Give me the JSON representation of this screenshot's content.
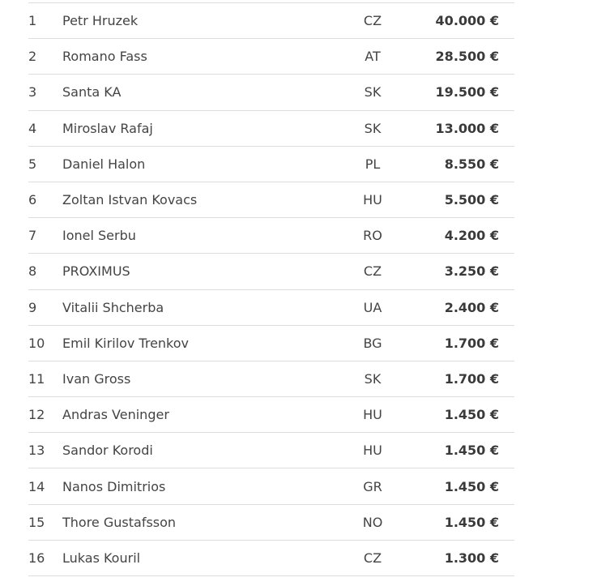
{
  "rows": [
    {
      "rank": "1",
      "name": "Petr Hruzek",
      "country": "CZ",
      "prize": "40.000 €"
    },
    {
      "rank": "2",
      "name": "Romano Fass",
      "country": "AT",
      "prize": "28.500 €"
    },
    {
      "rank": "3",
      "name": "Santa KA",
      "country": "SK",
      "prize": "19.500 €"
    },
    {
      "rank": "4",
      "name": "Miroslav Rafaj",
      "country": "SK",
      "prize": "13.000 €"
    },
    {
      "rank": "5",
      "name": "Daniel Halon",
      "country": "PL",
      "prize": "8.550 €"
    },
    {
      "rank": "6",
      "name": "Zoltan Istvan Kovacs",
      "country": "HU",
      "prize": "5.500 €"
    },
    {
      "rank": "7",
      "name": "Ionel Serbu",
      "country": "RO",
      "prize": "4.200 €"
    },
    {
      "rank": "8",
      "name": "PROXIMUS",
      "country": "CZ",
      "prize": "3.250 €"
    },
    {
      "rank": "9",
      "name": "Vitalii Shcherba",
      "country": "UA",
      "prize": "2.400 €"
    },
    {
      "rank": "10",
      "name": "Emil Kirilov Trenkov",
      "country": "BG",
      "prize": "1.700 €"
    },
    {
      "rank": "11",
      "name": "Ivan Gross",
      "country": "SK",
      "prize": "1.700 €"
    },
    {
      "rank": "12",
      "name": "Andras Veninger",
      "country": "HU",
      "prize": "1.450 €"
    },
    {
      "rank": "13",
      "name": "Sandor Korodi",
      "country": "HU",
      "prize": "1.450 €"
    },
    {
      "rank": "14",
      "name": "Nanos Dimitrios",
      "country": "GR",
      "prize": "1.450 €"
    },
    {
      "rank": "15",
      "name": "Thore Gustafsson",
      "country": "NO",
      "prize": "1.450 €"
    },
    {
      "rank": "16",
      "name": "Lukas Kouril",
      "country": "CZ",
      "prize": "1.300 €"
    }
  ]
}
